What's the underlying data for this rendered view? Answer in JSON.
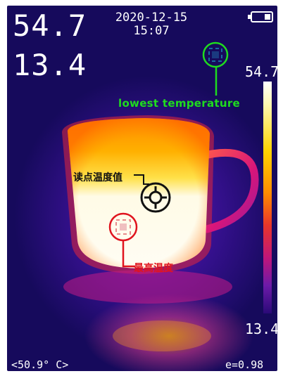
{
  "header": {
    "max_temp": "54.7",
    "min_temp": "13.4",
    "date": "2020-12-15",
    "time": "15:07"
  },
  "scale": {
    "max": "54.7",
    "min": "13.4"
  },
  "annotations": {
    "lowest": "lowest  temperature",
    "point_value": "读点温度值",
    "highest": "最高温度"
  },
  "footer": {
    "spot_reading": "<50.9° C>",
    "emissivity": "e=0.98"
  },
  "icons": {
    "battery": "battery-icon",
    "crosshair": "crosshair-icon",
    "min_marker": "min-temp-marker-icon",
    "max_marker": "max-temp-marker-icon"
  },
  "colors": {
    "lowest_annotation": "#1fdc1f",
    "highest_annotation": "#e0141e",
    "point_annotation": "#111111"
  }
}
